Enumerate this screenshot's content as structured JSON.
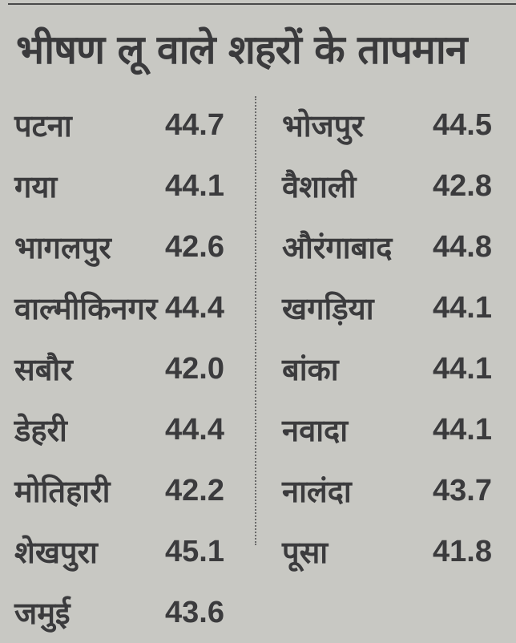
{
  "title": "भीषण लू वाले शहरों के तापमान",
  "left_column": [
    {
      "city": "पटना",
      "temp": "44.7"
    },
    {
      "city": "गया",
      "temp": "44.1"
    },
    {
      "city": "भागलपुर",
      "temp": "42.6"
    },
    {
      "city": "वाल्मीकिनगर",
      "temp": "44.4"
    },
    {
      "city": "सबौर",
      "temp": "42.0"
    },
    {
      "city": "डेहरी",
      "temp": "44.4"
    },
    {
      "city": "मोतिहारी",
      "temp": "42.2"
    },
    {
      "city": "शेखपुरा",
      "temp": "45.1"
    },
    {
      "city": "जमुई",
      "temp": "43.6"
    }
  ],
  "right_column": [
    {
      "city": "भोजपुर",
      "temp": "44.5"
    },
    {
      "city": "वैशाली",
      "temp": "42.8"
    },
    {
      "city": "औरंगाबाद",
      "temp": "44.8"
    },
    {
      "city": "खगड़िया",
      "temp": "44.1"
    },
    {
      "city": "बांका",
      "temp": "44.1"
    },
    {
      "city": "नवादा",
      "temp": "44.1"
    },
    {
      "city": "नालंदा",
      "temp": "43.7"
    },
    {
      "city": "पूसा",
      "temp": "41.8"
    }
  ]
}
